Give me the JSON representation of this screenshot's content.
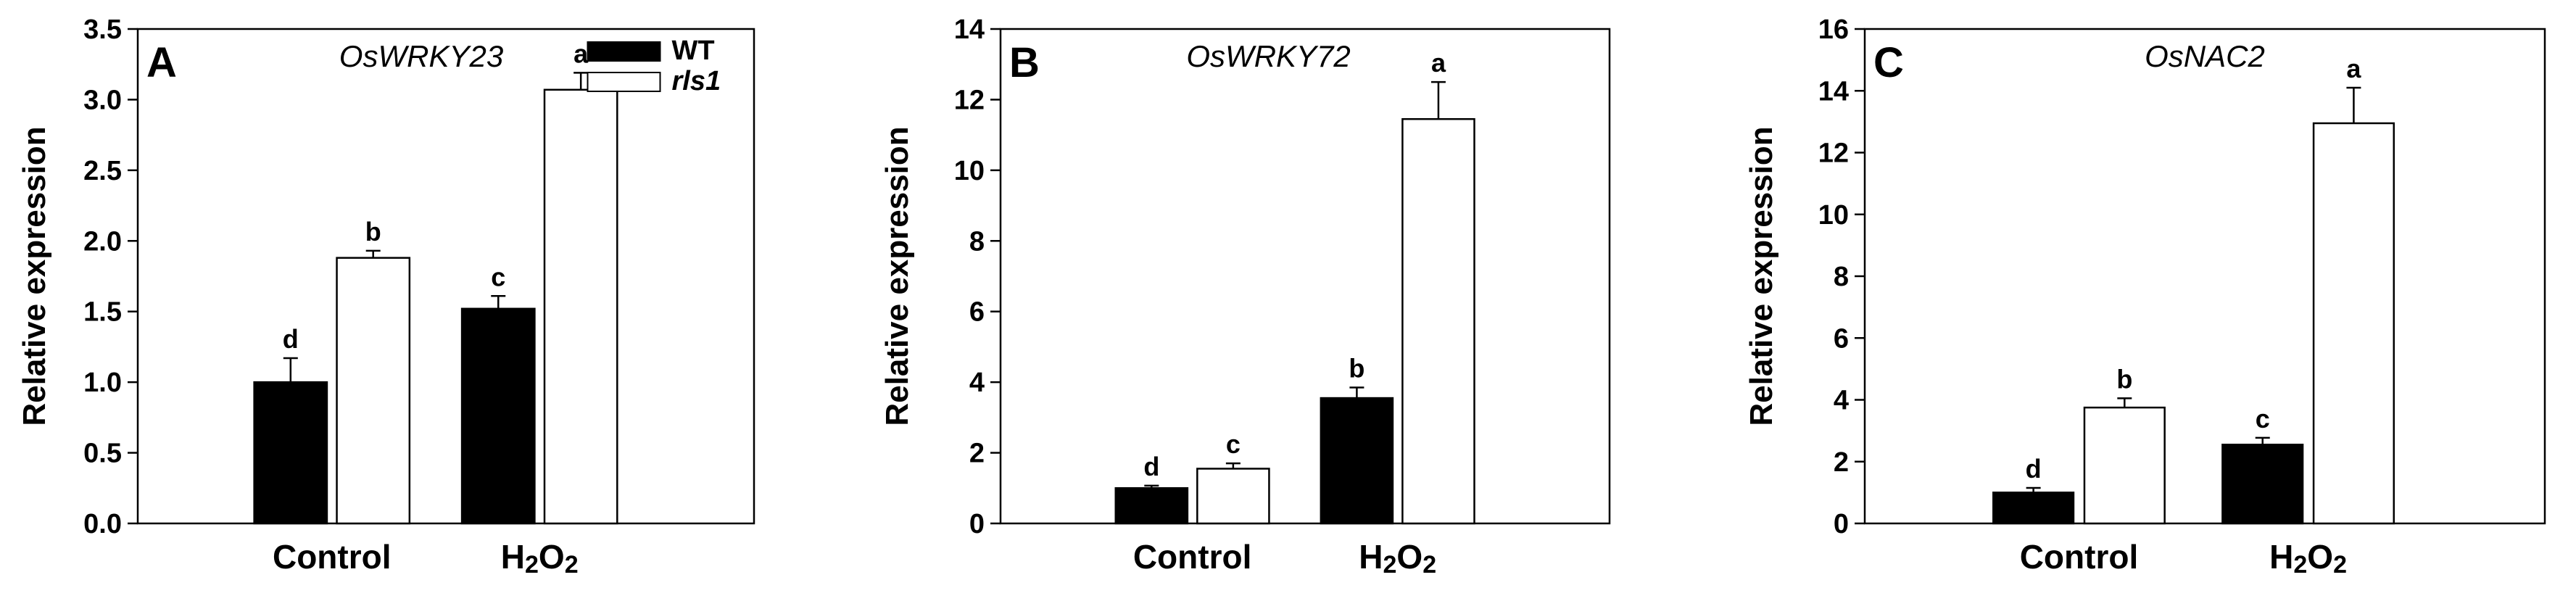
{
  "chart_data": [
    {
      "type": "bar",
      "panel": "A",
      "gene": "OsWRKY23",
      "ylabel": "Relative expression",
      "ylim": [
        0,
        3.5
      ],
      "yticks": [
        "0.0",
        "0.5",
        "1.0",
        "1.5",
        "2.0",
        "2.5",
        "3.0",
        "3.5"
      ],
      "categories": [
        "Control",
        "H2O2"
      ],
      "category_display": [
        {
          "text": "Control"
        },
        {
          "main": "H",
          "sub1": "2",
          "mid": "O",
          "sub2": "2"
        }
      ],
      "legend": {
        "placement": "top-right",
        "entries": [
          "WT",
          "rls1"
        ]
      },
      "series": [
        {
          "name": "WT",
          "color": "#000000",
          "values": [
            1.0,
            1.52
          ],
          "errors": [
            0.17,
            0.09
          ],
          "labels": [
            "d",
            "c"
          ]
        },
        {
          "name": "rls1",
          "color": "#ffffff",
          "values": [
            1.88,
            3.07
          ],
          "errors": [
            0.05,
            0.12
          ],
          "labels": [
            "b",
            "a"
          ]
        }
      ]
    },
    {
      "type": "bar",
      "panel": "B",
      "gene": "OsWRKY72",
      "ylabel": "Relative expression",
      "ylim": [
        0,
        14
      ],
      "yticks": [
        "0",
        "2",
        "4",
        "6",
        "8",
        "10",
        "12",
        "14"
      ],
      "categories": [
        "Control",
        "H2O2"
      ],
      "category_display": [
        {
          "text": "Control"
        },
        {
          "main": "H",
          "sub1": "2",
          "mid": "O",
          "sub2": "2"
        }
      ],
      "series": [
        {
          "name": "WT",
          "color": "#000000",
          "values": [
            1.0,
            3.55
          ],
          "errors": [
            0.07,
            0.3
          ],
          "labels": [
            "d",
            "b"
          ]
        },
        {
          "name": "rls1",
          "color": "#ffffff",
          "values": [
            1.55,
            11.45
          ],
          "errors": [
            0.15,
            1.05
          ],
          "labels": [
            "c",
            "a"
          ]
        }
      ]
    },
    {
      "type": "bar",
      "panel": "C",
      "gene": "OsNAC2",
      "ylabel": "Relative expression",
      "ylim": [
        0,
        16
      ],
      "yticks": [
        "0",
        "2",
        "4",
        "6",
        "8",
        "10",
        "12",
        "14",
        "16"
      ],
      "categories": [
        "Control",
        "H2O2"
      ],
      "category_display": [
        {
          "text": "Control"
        },
        {
          "main": "H",
          "sub1": "2",
          "mid": "O",
          "sub2": "2"
        }
      ],
      "series": [
        {
          "name": "WT",
          "color": "#000000",
          "values": [
            1.0,
            2.55
          ],
          "errors": [
            0.15,
            0.22
          ],
          "labels": [
            "d",
            "c"
          ]
        },
        {
          "name": "rls1",
          "color": "#ffffff",
          "values": [
            3.75,
            12.95
          ],
          "errors": [
            0.3,
            1.15
          ],
          "labels": [
            "b",
            "a"
          ]
        }
      ]
    }
  ]
}
